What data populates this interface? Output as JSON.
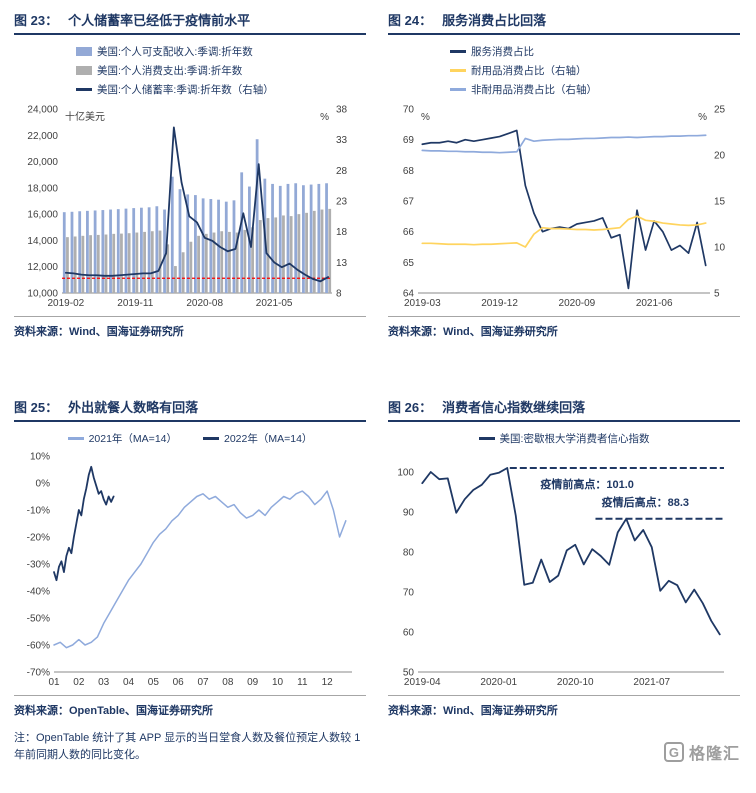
{
  "panels": [
    {
      "fig_label": "图 23：",
      "title": "个人储蓄率已经低于疫情前水平",
      "source_label": "资料来源：",
      "source": "Wind、国海证券研究所"
    },
    {
      "fig_label": "图 24：",
      "title": "服务消费占比回落",
      "source_label": "资料来源：",
      "source": "Wind、国海证券研究所"
    },
    {
      "fig_label": "图 25：",
      "title": "外出就餐人数略有回落",
      "source_label": "资料来源：",
      "source": "OpenTable、国海证券研究所"
    },
    {
      "fig_label": "图 26：",
      "title": "消费者信心指数继续回落",
      "source_label": "资料来源：",
      "source": "Wind、国海证券研究所"
    }
  ],
  "note": {
    "text": "注：OpenTable 统计了其 APP 显示的当日堂食人数及餐位预定人数较 1 年前同期人数的同比变化。"
  },
  "logo": {
    "text": "格隆汇",
    "icon_letter": "G"
  },
  "chart_data": [
    {
      "type": "combo_bar_line",
      "title": "个人储蓄率已经低于疫情前水平",
      "months": [
        "2019-02",
        "2019-03",
        "2019-04",
        "2019-05",
        "2019-06",
        "2019-07",
        "2019-08",
        "2019-09",
        "2019-10",
        "2019-11",
        "2019-12",
        "2020-01",
        "2020-02",
        "2020-03",
        "2020-04",
        "2020-05",
        "2020-06",
        "2020-07",
        "2020-08",
        "2020-09",
        "2020-10",
        "2020-11",
        "2020-12",
        "2021-01",
        "2021-02",
        "2021-03",
        "2021-04",
        "2021-05",
        "2021-06",
        "2021-07",
        "2021-08",
        "2021-09",
        "2021-10",
        "2021-11",
        "2021-12"
      ],
      "x_tick_indices": [
        0,
        9,
        18,
        27
      ],
      "x_tick_labels": [
        "2019-02",
        "2019-11",
        "2020-08",
        "2021-05"
      ],
      "left_axis": {
        "min": 10000,
        "max": 24000,
        "unit": "十亿美元",
        "ticks": [
          {
            "v": 10000,
            "label": "10,000"
          },
          {
            "v": 12000,
            "label": "12,000"
          },
          {
            "v": 14000,
            "label": "14,000"
          },
          {
            "v": 16000,
            "label": "16,000"
          },
          {
            "v": 18000,
            "label": "18,000"
          },
          {
            "v": 20000,
            "label": "20,000"
          },
          {
            "v": 22000,
            "label": "22,000"
          },
          {
            "v": 24000,
            "label": "24,000"
          }
        ]
      },
      "right_axis": {
        "min": 8,
        "max": 38,
        "unit": "%",
        "ticks": [
          {
            "v": 8,
            "label": "8"
          },
          {
            "v": 13,
            "label": "13"
          },
          {
            "v": 18,
            "label": "18"
          },
          {
            "v": 23,
            "label": "23"
          },
          {
            "v": 28,
            "label": "28"
          },
          {
            "v": 33,
            "label": "33"
          },
          {
            "v": 38,
            "label": "38"
          }
        ]
      },
      "series": [
        {
          "name": "美国:个人可支配收入:季调:折年数",
          "type": "bar",
          "axis": "left",
          "color": "#93A9D6",
          "values": [
            16150,
            16180,
            16220,
            16250,
            16280,
            16310,
            16350,
            16380,
            16420,
            16460,
            16490,
            16520,
            16600,
            16350,
            18850,
            17900,
            17500,
            17450,
            17200,
            17150,
            17100,
            16950,
            17050,
            19180,
            18100,
            21700,
            18700,
            18300,
            18150,
            18300,
            18350,
            18200,
            18250,
            18300,
            18350
          ]
        },
        {
          "name": "美国:个人消费支出:季调:折年数",
          "type": "bar",
          "axis": "left",
          "color": "#AFAFAF",
          "values": [
            14250,
            14300,
            14350,
            14400,
            14420,
            14450,
            14500,
            14520,
            14550,
            14600,
            14650,
            14700,
            14750,
            13700,
            12050,
            13100,
            13900,
            14350,
            14500,
            14600,
            14700,
            14650,
            14600,
            14800,
            15000,
            15550,
            15700,
            15750,
            15900,
            15850,
            16000,
            16100,
            16250,
            16350,
            16400
          ]
        },
        {
          "name": "美国:个人储蓄率:季调:折年数（右轴）",
          "type": "line",
          "axis": "right",
          "color": "#1F3864",
          "width": 1.8,
          "values": [
            11.3,
            11.2,
            11.0,
            10.9,
            10.9,
            10.8,
            10.8,
            10.9,
            11.0,
            11.1,
            11.2,
            11.2,
            11.6,
            14.5,
            35.0,
            26.0,
            20.5,
            19.5,
            17.0,
            16.5,
            15.5,
            14.8,
            15.2,
            21.0,
            15.5,
            29.0,
            14.5,
            13.0,
            12.2,
            12.8,
            11.8,
            11.0,
            10.3,
            9.9,
            10.6
          ]
        }
      ],
      "ref_lines": [
        {
          "axis": "right",
          "value": 10.4,
          "color": "#FF0000",
          "width": 1.2
        }
      ],
      "legend": {
        "layout": "column",
        "indent": 62
      }
    },
    {
      "type": "line",
      "title": "服务消费占比回落",
      "months": [
        "2019-03",
        "2019-04",
        "2019-05",
        "2019-06",
        "2019-07",
        "2019-08",
        "2019-09",
        "2019-10",
        "2019-11",
        "2019-12",
        "2020-01",
        "2020-02",
        "2020-03",
        "2020-04",
        "2020-05",
        "2020-06",
        "2020-07",
        "2020-08",
        "2020-09",
        "2020-10",
        "2020-11",
        "2020-12",
        "2021-01",
        "2021-02",
        "2021-03",
        "2021-04",
        "2021-05",
        "2021-06",
        "2021-07",
        "2021-08",
        "2021-09",
        "2021-10",
        "2021-11",
        "2021-12"
      ],
      "x_tick_indices": [
        0,
        9,
        18,
        27
      ],
      "x_tick_labels": [
        "2019-03",
        "2019-12",
        "2020-09",
        "2021-06"
      ],
      "left_axis": {
        "min": 64,
        "max": 70,
        "unit": "%",
        "ticks": [
          {
            "v": 64,
            "label": "64"
          },
          {
            "v": 65,
            "label": "65"
          },
          {
            "v": 66,
            "label": "66"
          },
          {
            "v": 67,
            "label": "67"
          },
          {
            "v": 68,
            "label": "68"
          },
          {
            "v": 69,
            "label": "69"
          },
          {
            "v": 70,
            "label": "70"
          }
        ]
      },
      "right_axis": {
        "min": 5,
        "max": 25,
        "unit": "%",
        "ticks": [
          {
            "v": 5,
            "label": "5"
          },
          {
            "v": 10,
            "label": "10"
          },
          {
            "v": 15,
            "label": "15"
          },
          {
            "v": 20,
            "label": "20"
          },
          {
            "v": 25,
            "label": "25"
          }
        ]
      },
      "series": [
        {
          "name": "服务消费占比",
          "type": "line",
          "axis": "left",
          "color": "#1F3864",
          "width": 1.7,
          "values": [
            68.85,
            68.9,
            68.9,
            68.95,
            68.9,
            69.0,
            68.95,
            69.0,
            69.05,
            69.1,
            69.2,
            69.3,
            67.5,
            66.6,
            66.0,
            66.1,
            66.15,
            66.1,
            66.25,
            66.3,
            66.35,
            66.45,
            65.8,
            65.9,
            64.15,
            66.7,
            65.4,
            66.35,
            66.0,
            65.4,
            65.55,
            65.3,
            66.3,
            64.9
          ]
        },
        {
          "name": "耐用品消费占比（右轴）",
          "type": "line",
          "axis": "right",
          "color": "#FFD45E",
          "width": 1.7,
          "values": [
            10.4,
            10.4,
            10.35,
            10.3,
            10.3,
            10.3,
            10.25,
            10.3,
            10.3,
            10.35,
            10.4,
            10.45,
            10.0,
            11.4,
            12.1,
            12.0,
            12.0,
            11.95,
            11.9,
            11.9,
            11.85,
            11.9,
            12.0,
            12.1,
            13.0,
            13.35,
            12.9,
            12.8,
            12.6,
            12.5,
            12.4,
            12.35,
            12.4,
            12.6
          ]
        },
        {
          "name": "非耐用品消费占比（右轴）",
          "type": "line",
          "axis": "right",
          "color": "#8FAADC",
          "width": 1.7,
          "values": [
            20.5,
            20.45,
            20.45,
            20.4,
            20.4,
            20.35,
            20.35,
            20.3,
            20.3,
            20.25,
            20.3,
            20.35,
            21.8,
            21.5,
            21.6,
            21.65,
            21.7,
            21.7,
            21.75,
            21.8,
            21.8,
            21.85,
            21.9,
            21.9,
            21.95,
            21.9,
            21.95,
            22.0,
            22.0,
            22.05,
            22.05,
            22.1,
            22.1,
            22.15
          ]
        }
      ],
      "legend": {
        "layout": "column",
        "indent": 62
      }
    },
    {
      "type": "line",
      "title": "外出就餐人数略有回落",
      "x": {
        "mode": "linear",
        "min": 1,
        "max": 13,
        "ticks": [
          {
            "v": 1,
            "label": "01"
          },
          {
            "v": 2,
            "label": "02"
          },
          {
            "v": 3,
            "label": "03"
          },
          {
            "v": 4,
            "label": "04"
          },
          {
            "v": 5,
            "label": "05"
          },
          {
            "v": 6,
            "label": "06"
          },
          {
            "v": 7,
            "label": "07"
          },
          {
            "v": 8,
            "label": "08"
          },
          {
            "v": 9,
            "label": "09"
          },
          {
            "v": 10,
            "label": "10"
          },
          {
            "v": 11,
            "label": "11"
          },
          {
            "v": 12,
            "label": "12"
          }
        ]
      },
      "y_axis": {
        "min": -70,
        "max": 10,
        "ticks": [
          {
            "v": 10,
            "label": "10%"
          },
          {
            "v": 0,
            "label": "0%"
          },
          {
            "v": -10,
            "label": "-10%"
          },
          {
            "v": -20,
            "label": "-20%"
          },
          {
            "v": -30,
            "label": "-30%"
          },
          {
            "v": -40,
            "label": "-40%"
          },
          {
            "v": -50,
            "label": "-50%"
          },
          {
            "v": -60,
            "label": "-60%"
          },
          {
            "v": -70,
            "label": "-70%"
          }
        ]
      },
      "series": [
        {
          "name": "2021年（MA=14）",
          "type": "line",
          "color": "#8FAADC",
          "width": 1.5,
          "x": [
            1,
            1.25,
            1.5,
            1.75,
            2,
            2.25,
            2.5,
            2.75,
            3,
            3.25,
            3.5,
            3.75,
            4,
            4.25,
            4.5,
            4.75,
            5,
            5.25,
            5.5,
            5.75,
            6,
            6.25,
            6.5,
            6.75,
            7,
            7.25,
            7.5,
            7.75,
            8,
            8.25,
            8.5,
            8.75,
            9,
            9.25,
            9.5,
            9.75,
            10,
            10.25,
            10.5,
            10.75,
            11,
            11.25,
            11.5,
            11.75,
            12,
            12.25,
            12.5,
            12.75
          ],
          "y": [
            -60,
            -59,
            -61,
            -60,
            -58,
            -60,
            -59,
            -57,
            -52,
            -48,
            -44,
            -40,
            -36,
            -33,
            -30,
            -26,
            -22,
            -19,
            -17,
            -14,
            -12,
            -9,
            -7,
            -5,
            -4,
            -6,
            -5,
            -7,
            -9,
            -8,
            -11,
            -13,
            -12,
            -10,
            -12,
            -9,
            -7,
            -5,
            -6,
            -4,
            -3,
            -5,
            -8,
            -6,
            -3,
            -10,
            -20,
            -14
          ]
        },
        {
          "name": "2022年（MA=14）",
          "type": "line",
          "color": "#1F3864",
          "width": 1.8,
          "x": [
            1,
            1.1,
            1.2,
            1.3,
            1.4,
            1.5,
            1.6,
            1.7,
            1.8,
            1.9,
            2,
            2.1,
            2.2,
            2.3,
            2.4,
            2.5,
            2.6,
            2.7,
            2.8,
            2.9,
            3,
            3.1,
            3.2,
            3.3,
            3.4
          ],
          "y": [
            -33,
            -36,
            -31,
            -29,
            -33,
            -27,
            -24,
            -26,
            -20,
            -15,
            -10,
            -12,
            -6,
            -2,
            3,
            6,
            2,
            -1,
            -4,
            -3,
            -6,
            -8,
            -5,
            -7,
            -5
          ]
        }
      ],
      "legend": {
        "layout": "row"
      }
    },
    {
      "type": "line",
      "title": "消费者信心指数继续回落",
      "months": [
        "2019-04",
        "2019-05",
        "2019-06",
        "2019-07",
        "2019-08",
        "2019-09",
        "2019-10",
        "2019-11",
        "2019-12",
        "2020-01",
        "2020-02",
        "2020-03",
        "2020-04",
        "2020-05",
        "2020-06",
        "2020-07",
        "2020-08",
        "2020-09",
        "2020-10",
        "2020-11",
        "2020-12",
        "2021-01",
        "2021-02",
        "2021-03",
        "2021-04",
        "2021-05",
        "2021-06",
        "2021-07",
        "2021-08",
        "2021-09",
        "2021-10",
        "2021-11",
        "2021-12",
        "2022-01",
        "2022-02",
        "2022-03"
      ],
      "x_tick_indices": [
        0,
        9,
        18,
        27
      ],
      "x_tick_labels": [
        "2019-04",
        "2020-01",
        "2020-10",
        "2021-07"
      ],
      "y_axis": {
        "min": 50,
        "max": 104,
        "ticks": [
          {
            "v": 50,
            "label": "50"
          },
          {
            "v": 60,
            "label": "60"
          },
          {
            "v": 70,
            "label": "70"
          },
          {
            "v": 80,
            "label": "80"
          },
          {
            "v": 90,
            "label": "90"
          },
          {
            "v": 100,
            "label": "100"
          }
        ]
      },
      "series": [
        {
          "name": "美国:密歇根大学消费者信心指数",
          "type": "line",
          "axis": "left",
          "color": "#1F3864",
          "width": 1.8,
          "values": [
            97.2,
            100.0,
            98.2,
            98.4,
            89.8,
            93.2,
            95.5,
            96.8,
            99.3,
            99.8,
            101.0,
            89.1,
            71.8,
            72.3,
            78.1,
            72.5,
            74.1,
            80.4,
            81.8,
            76.9,
            80.7,
            79.0,
            76.8,
            84.9,
            88.3,
            82.9,
            85.5,
            81.2,
            70.3,
            72.8,
            71.7,
            67.4,
            70.6,
            67.2,
            62.8,
            59.4
          ]
        }
      ],
      "annotations": [
        {
          "line": {
            "value": 101.0,
            "x_from": 0.3,
            "x_to": 1.0
          },
          "label": {
            "text": "疫情前高点：101.0",
            "x": 0.4,
            "value": 96.0
          }
        },
        {
          "line": {
            "value": 88.3,
            "x_from": 0.58,
            "x_to": 1.0
          },
          "label": {
            "text": "疫情后高点：88.3",
            "x": 0.6,
            "value": 91.5
          }
        }
      ],
      "legend": {
        "layout": "row"
      }
    }
  ]
}
